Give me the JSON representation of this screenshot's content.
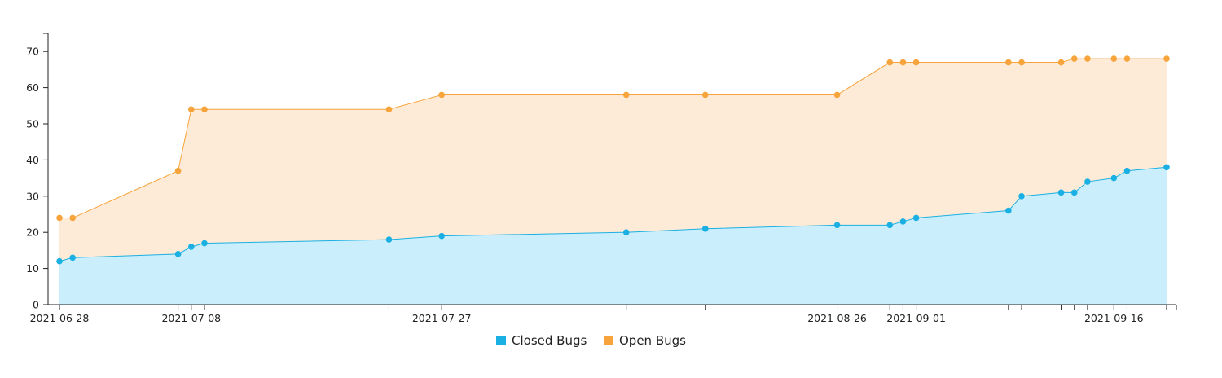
{
  "chart_data": {
    "type": "area",
    "stacked": true,
    "title": "",
    "xlabel": "",
    "ylabel": "",
    "ylim": [
      0,
      75
    ],
    "yticks": [
      0,
      10,
      20,
      30,
      40,
      50,
      60,
      70
    ],
    "grid": false,
    "legend_position": "bottom-center",
    "x": [
      "2021-06-28",
      "2021-06-29",
      "2021-07-07",
      "2021-07-08",
      "2021-07-09",
      "2021-07-23",
      "2021-07-27",
      "2021-08-10",
      "2021-08-16",
      "2021-08-26",
      "2021-08-30",
      "2021-08-31",
      "2021-09-01",
      "2021-09-08",
      "2021-09-09",
      "2021-09-12",
      "2021-09-13",
      "2021-09-14",
      "2021-09-16",
      "2021-09-17",
      "2021-09-20"
    ],
    "x_tick_dates": [
      "2021-06-28",
      "2021-07-07",
      "2021-07-08",
      "2021-07-09",
      "2021-07-23",
      "2021-07-27",
      "2021-08-10",
      "2021-08-16",
      "2021-08-26",
      "2021-08-30",
      "2021-08-31",
      "2021-09-01",
      "2021-09-08",
      "2021-09-09",
      "2021-09-12",
      "2021-09-13",
      "2021-09-14",
      "2021-09-16",
      "2021-09-17",
      "2021-09-20"
    ],
    "x_tick_labels": [
      "2021-06-28",
      "2021-07-08",
      "2021-07-27",
      "2021-08-26",
      "2021-09-01",
      "2021-09-16"
    ],
    "series": [
      {
        "name": "Closed Bugs",
        "color": "#1ab0e3",
        "fill": "#cbeefc",
        "values": [
          12,
          13,
          14,
          16,
          17,
          18,
          19,
          20,
          21,
          22,
          22,
          23,
          24,
          26,
          30,
          31,
          31,
          34,
          35,
          37,
          38
        ]
      },
      {
        "name": "Open Bugs",
        "color": "#f7a43c",
        "fill": "#fdebd7",
        "values": [
          12,
          11,
          23,
          38,
          37,
          36,
          39,
          38,
          37,
          36,
          45,
          44,
          43,
          41,
          37,
          36,
          37,
          34,
          33,
          31,
          30
        ]
      }
    ]
  }
}
